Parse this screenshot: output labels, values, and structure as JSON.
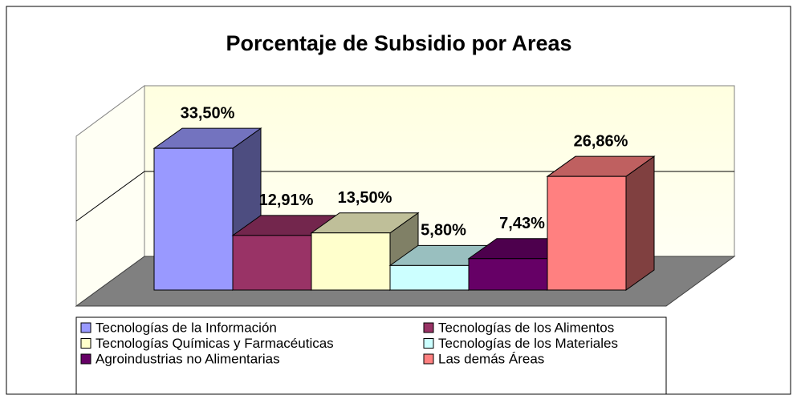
{
  "chart_data": {
    "type": "bar3d",
    "title": "Porcentaje de Subsidio por Areas",
    "categories": [
      "Tecnologías de la Información",
      "Tecnologías de los Alimentos",
      "Tecnologías Químicas y Farmacéuticas",
      "Tecnologías de los Materiales",
      "Agroindustrias no Alimentarias",
      "Las demás Áreas"
    ],
    "values": [
      33.5,
      12.91,
      13.5,
      5.8,
      7.43,
      26.86
    ],
    "value_labels": [
      "33,50%",
      "12,91%",
      "13,50%",
      "5,80%",
      "7,43%",
      "26,86%"
    ],
    "colors": [
      "#9999ff",
      "#993366",
      "#ffffcc",
      "#ccffff",
      "#660066",
      "#ff8080"
    ],
    "ylim": [
      0,
      40
    ],
    "yticks": [
      0,
      20,
      40
    ],
    "grid": true,
    "legend": "bottom"
  }
}
